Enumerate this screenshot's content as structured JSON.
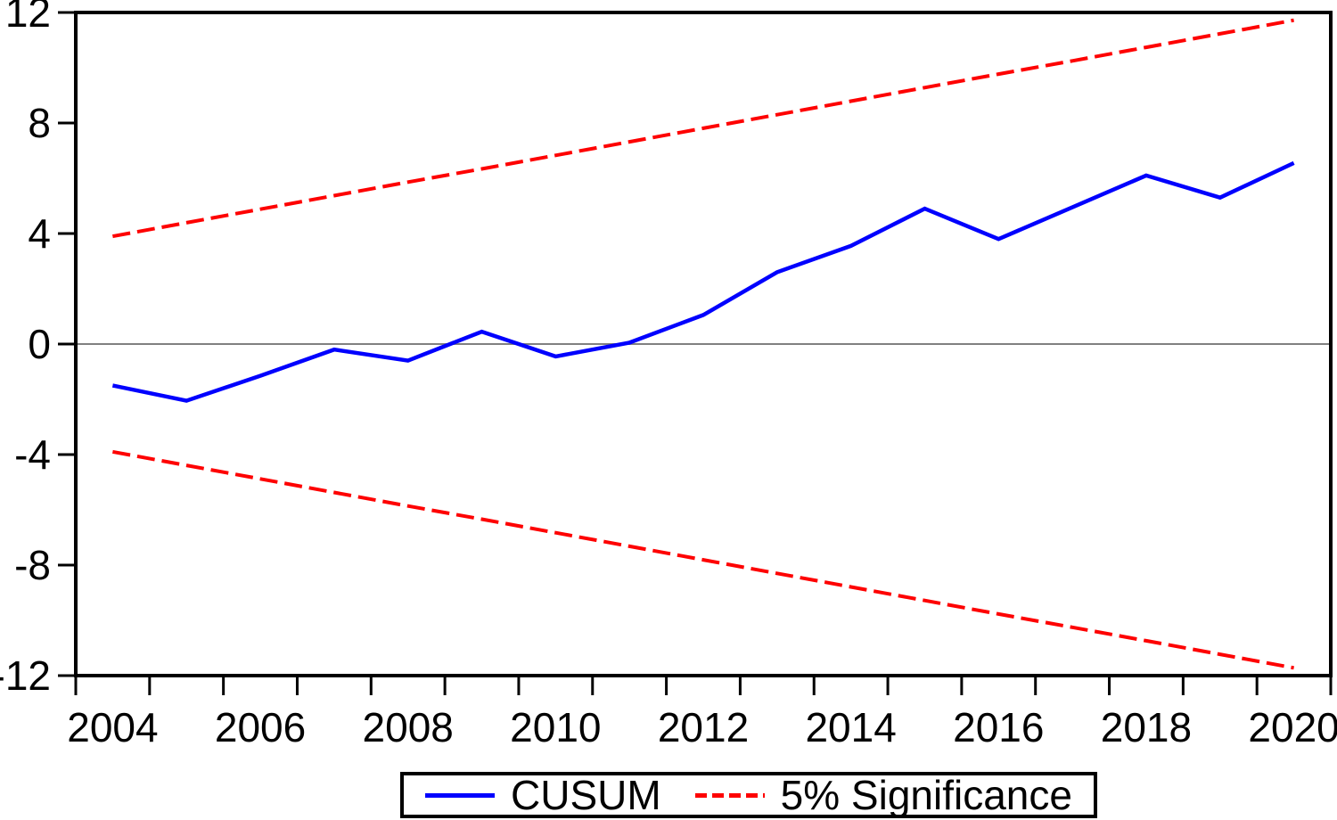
{
  "figure": {
    "background": "#ffffff",
    "frame_color": "#000000",
    "zero_line_color": "#808080",
    "tick_label_color": "#000000"
  },
  "legend": {
    "items": [
      {
        "label": "CUSUM",
        "color": "#0000fe",
        "line_style": "solid"
      },
      {
        "label": "5% Significance",
        "color": "#fe0000",
        "line_style": "dashed"
      }
    ]
  },
  "chart_data": {
    "type": "line",
    "title": "",
    "xlabel": "",
    "ylabel": "",
    "x": [
      2004,
      2005,
      2006,
      2007,
      2008,
      2009,
      2010,
      2011,
      2012,
      2013,
      2014,
      2015,
      2016,
      2017,
      2018,
      2019,
      2020
    ],
    "x_tick_labels": [
      "2004",
      "2006",
      "2008",
      "2010",
      "2012",
      "2014",
      "2016",
      "2018",
      "2020"
    ],
    "y_ticks": [
      -12,
      -8,
      -4,
      0,
      4,
      8,
      12
    ],
    "ylim": [
      -12,
      12
    ],
    "grid": false,
    "zero_line": 0,
    "legend_position": "bottom-center",
    "series": [
      {
        "name": "CUSUM",
        "color": "#0000fe",
        "style": "solid",
        "width": 4.5,
        "values": [
          -1.5,
          -2.05,
          -1.15,
          -0.2,
          -0.6,
          0.45,
          -0.45,
          0.05,
          1.05,
          2.6,
          3.55,
          4.9,
          3.8,
          4.95,
          6.1,
          5.3,
          6.55
        ]
      },
      {
        "name": "5% Significance (upper)",
        "color": "#fe0000",
        "style": "dashed",
        "width": 4,
        "values": [
          3.9,
          4.39,
          4.88,
          5.37,
          5.86,
          6.34,
          6.83,
          7.32,
          7.81,
          8.3,
          8.79,
          9.28,
          9.77,
          10.25,
          10.74,
          11.23,
          11.72
        ]
      },
      {
        "name": "5% Significance (lower)",
        "color": "#fe0000",
        "style": "dashed",
        "width": 4,
        "values": [
          -3.9,
          -4.39,
          -4.88,
          -5.37,
          -5.86,
          -6.34,
          -6.83,
          -7.32,
          -7.81,
          -8.3,
          -8.79,
          -9.28,
          -9.77,
          -10.25,
          -10.74,
          -11.23,
          -11.72
        ]
      }
    ]
  }
}
